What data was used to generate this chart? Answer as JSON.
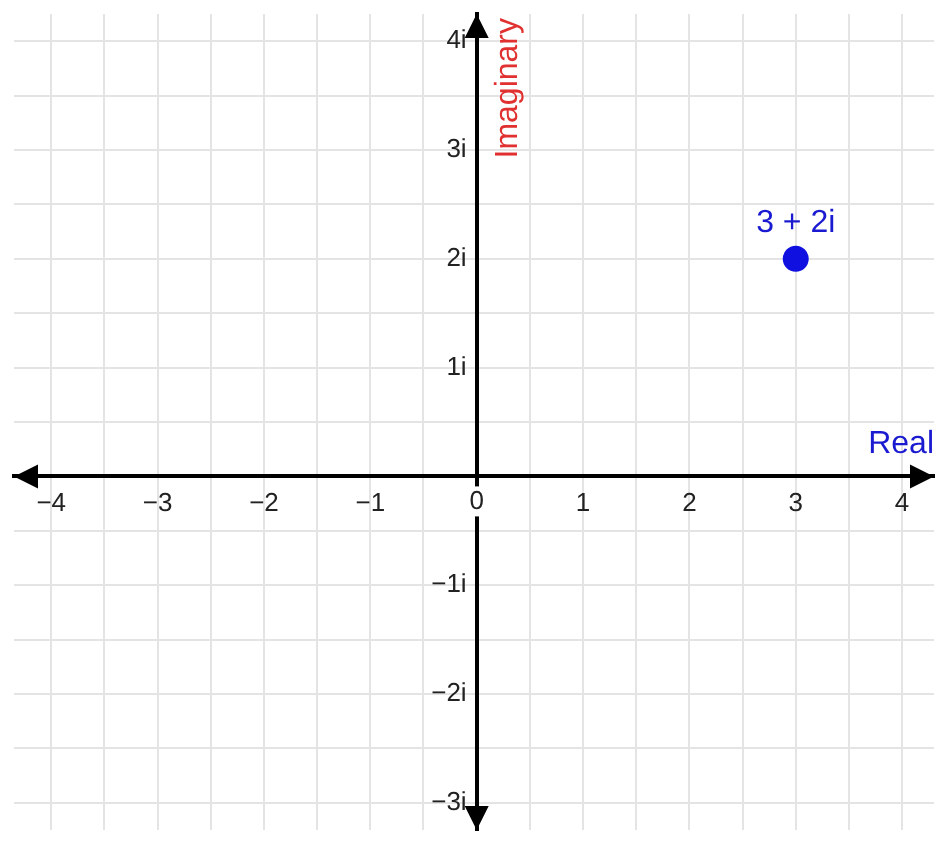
{
  "chart_data": {
    "type": "scatter",
    "xlabel": "Real",
    "ylabel": "Imaginary",
    "series": [
      {
        "color": "#1010e0",
        "x": [
          3
        ],
        "values": [
          2
        ]
      }
    ],
    "annotations": [
      {
        "text": "3 + 2i",
        "x": 3,
        "y": 2
      }
    ],
    "xlim": [
      -4.35,
      4.3
    ],
    "ylim": [
      -3.25,
      4.25
    ],
    "xticks": [
      {
        "value": -4,
        "label": "−4"
      },
      {
        "value": -3.5,
        "label": null
      },
      {
        "value": -3,
        "label": "−3"
      },
      {
        "value": -2.5,
        "label": null
      },
      {
        "value": -2,
        "label": "−2"
      },
      {
        "value": -1.5,
        "label": null
      },
      {
        "value": -1,
        "label": "−1"
      },
      {
        "value": -0.5,
        "label": null
      },
      0,
      {
        "value": 0.5,
        "label": null
      },
      1,
      {
        "value": 1.5,
        "label": null
      },
      2,
      {
        "value": 2.5,
        "label": null
      },
      3,
      {
        "value": 3.5,
        "label": null
      },
      4
    ],
    "yticks": [
      {
        "value": -3,
        "label": "−3i"
      },
      {
        "value": -2.5,
        "label": null
      },
      {
        "value": -2,
        "label": "−2i"
      },
      {
        "value": -1.5,
        "label": null
      },
      {
        "value": -1,
        "label": "−1i"
      },
      {
        "value": -0.5,
        "label": null
      },
      {
        "value": 0,
        "label": null
      },
      {
        "value": 0.5,
        "label": null
      },
      {
        "value": 1,
        "label": "1i"
      },
      {
        "value": 1.5,
        "label": null
      },
      {
        "value": 2,
        "label": "2i"
      },
      {
        "value": 2.5,
        "label": null
      },
      {
        "value": 3,
        "label": "3i"
      },
      {
        "value": 3.5,
        "label": null
      },
      {
        "value": 4,
        "label": "4i"
      }
    ],
    "grid": true,
    "marker": "circle",
    "legend": false
  }
}
